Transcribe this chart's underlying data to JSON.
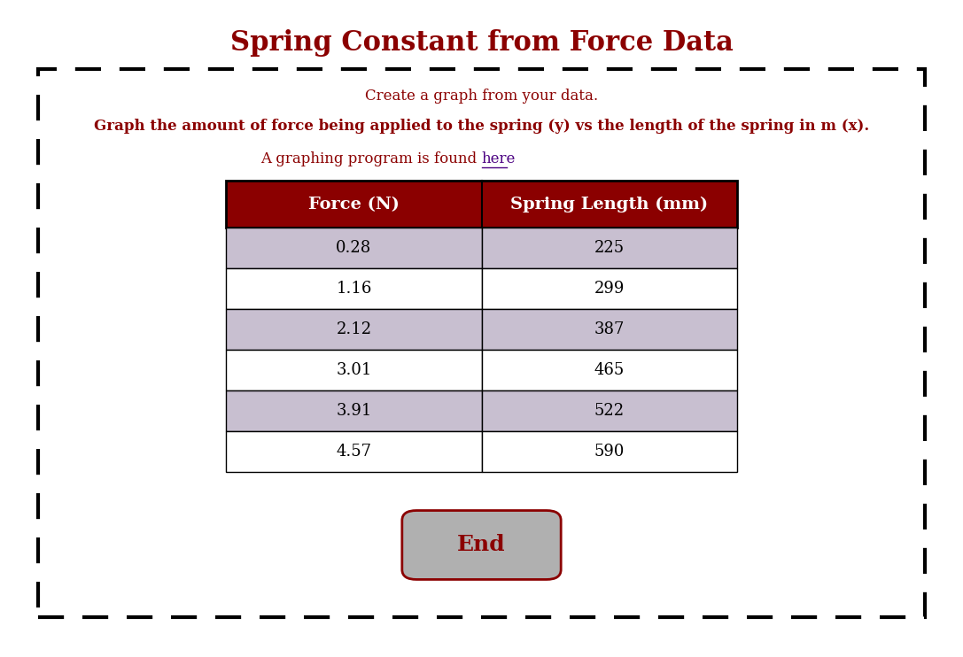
{
  "title": "Spring Constant from Force Data",
  "title_color": "#8B0000",
  "title_fontsize": 22,
  "line1": "Create a graph from your data.",
  "line2": "Graph the amount of force being applied to the spring (y) vs the length of the spring in m (x).",
  "line3_prefix": "A graphing program is found ",
  "line3_link": "here",
  "text_color": "#8B0000",
  "link_color": "#4B0082",
  "table_headers": [
    "Force (N)",
    "Spring Length (mm)"
  ],
  "table_data": [
    [
      "0.28",
      "225"
    ],
    [
      "1.16",
      "299"
    ],
    [
      "2.12",
      "387"
    ],
    [
      "3.01",
      "465"
    ],
    [
      "3.91",
      "522"
    ],
    [
      "4.57",
      "590"
    ]
  ],
  "header_bg": "#8B0000",
  "header_text_color": "#FFFFFF",
  "row_odd_bg": "#C8BFD0",
  "row_even_bg": "#FFFFFF",
  "border_color": "#000000",
  "button_text": "End",
  "button_text_color": "#8B0000",
  "button_bg": "#B0B0B0",
  "button_border": "#8B0000",
  "dash_border_color": "#000000",
  "background_color": "#FFFFFF"
}
